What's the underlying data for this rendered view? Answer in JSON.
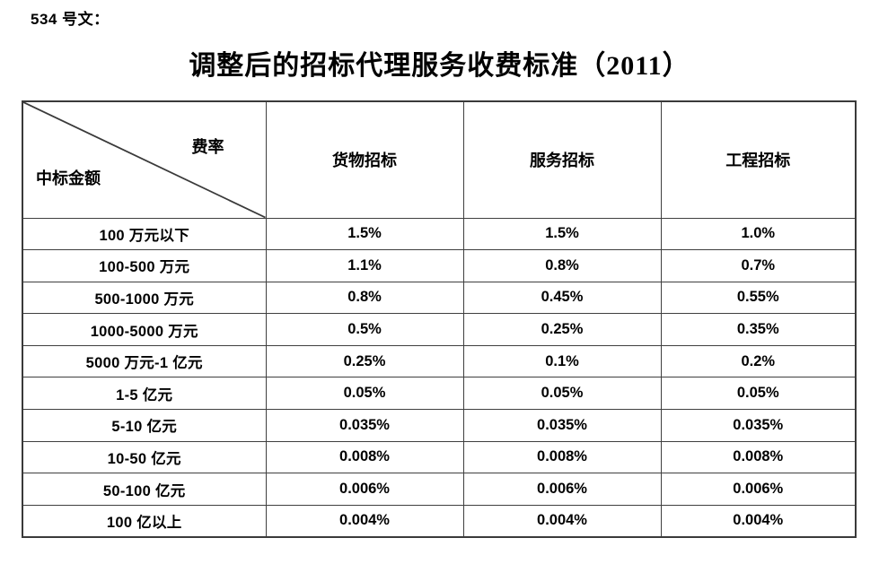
{
  "document": {
    "doc_label": "534 号文：",
    "title": "调整后的招标代理服务收费标准（2011）"
  },
  "table": {
    "corner": {
      "top_right": "费率",
      "bottom_left": "中标金额"
    },
    "columns": [
      "货物招标",
      "服务招标",
      "工程招标"
    ],
    "rows": [
      {
        "amount": "100 万元以下",
        "values": [
          "1.5%",
          "1.5%",
          "1.0%"
        ]
      },
      {
        "amount": "100-500 万元",
        "values": [
          "1.1%",
          "0.8%",
          "0.7%"
        ]
      },
      {
        "amount": "500-1000 万元",
        "values": [
          "0.8%",
          "0.45%",
          "0.55%"
        ]
      },
      {
        "amount": "1000-5000 万元",
        "values": [
          "0.5%",
          "0.25%",
          "0.35%"
        ]
      },
      {
        "amount": "5000 万元-1 亿元",
        "values": [
          "0.25%",
          "0.1%",
          "0.2%"
        ]
      },
      {
        "amount": "1-5 亿元",
        "values": [
          "0.05%",
          "0.05%",
          "0.05%"
        ]
      },
      {
        "amount": "5-10 亿元",
        "values": [
          "0.035%",
          "0.035%",
          "0.035%"
        ]
      },
      {
        "amount": "10-50 亿元",
        "values": [
          "0.008%",
          "0.008%",
          "0.008%"
        ]
      },
      {
        "amount": "50-100 亿元",
        "values": [
          "0.006%",
          "0.006%",
          "0.006%"
        ]
      },
      {
        "amount": "100 亿以上",
        "values": [
          "0.004%",
          "0.004%",
          "0.004%"
        ]
      }
    ],
    "border_color": "#3a3a3a"
  }
}
